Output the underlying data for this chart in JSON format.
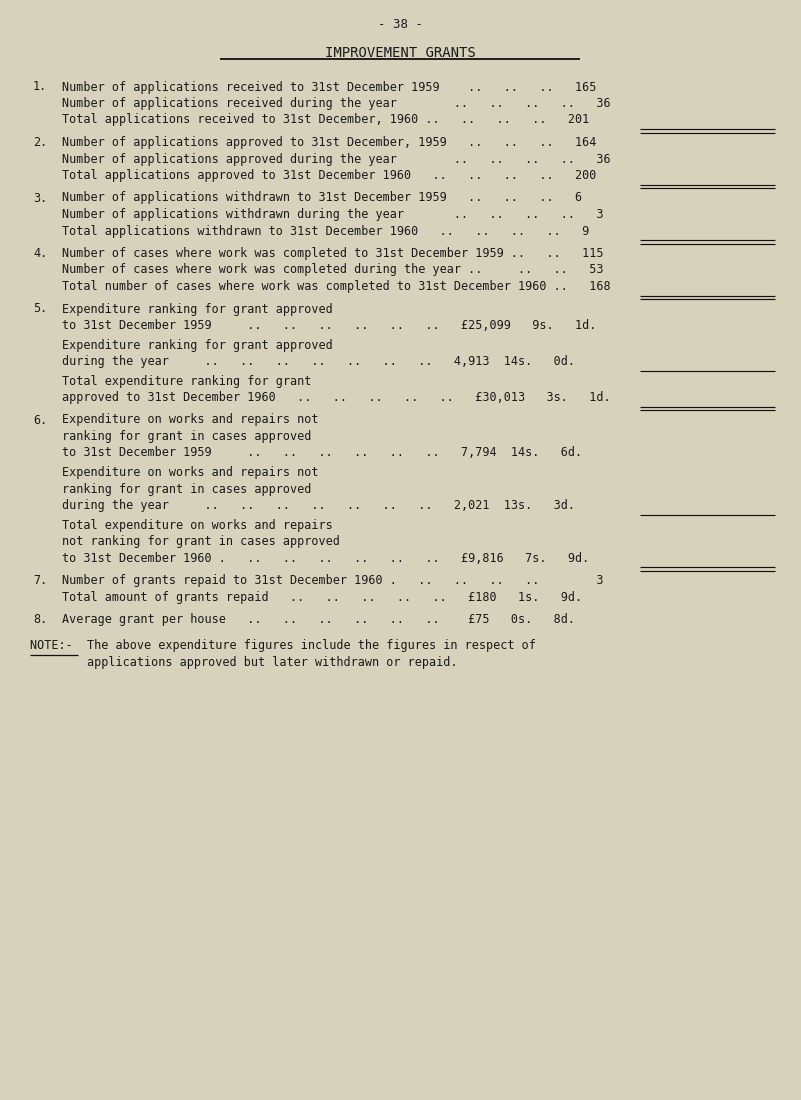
{
  "page_number": "- 38 -",
  "title": "IMPROVEMENT GRANTS",
  "bg_color": "#d6d2bc",
  "text_color": "#1a1a1a",
  "lines": [
    {
      "type": "page_num",
      "text": "- 38 -"
    },
    {
      "type": "title",
      "text": "IMPROVEMENT GRANTS"
    },
    {
      "type": "gap_large"
    },
    {
      "type": "section_line",
      "num": "1.",
      "text": "Number of applications received to 31st December 1959    ..   ..   ..   165",
      "uline": false,
      "duline": false
    },
    {
      "type": "section_line",
      "num": "",
      "text": "Number of applications received during the year        ..   ..   ..   ..   36",
      "uline": false,
      "duline": false
    },
    {
      "type": "section_line",
      "num": "",
      "text": "Total applications received to 31st December, 1960 ..   ..   ..   ..   201",
      "uline": true,
      "duline": true
    },
    {
      "type": "gap_medium"
    },
    {
      "type": "section_line",
      "num": "2.",
      "text": "Number of applications approved to 31st December, 1959   ..   ..   ..   164",
      "uline": false,
      "duline": false
    },
    {
      "type": "section_line",
      "num": "",
      "text": "Number of applications approved during the year        ..   ..   ..   ..   36",
      "uline": false,
      "duline": false
    },
    {
      "type": "section_line",
      "num": "",
      "text": "Total applications approved to 31st December 1960   ..   ..   ..   ..   200",
      "uline": true,
      "duline": true
    },
    {
      "type": "gap_medium"
    },
    {
      "type": "section_line",
      "num": "3.",
      "text": "Number of applications withdrawn to 31st December 1959   ..   ..   ..   6",
      "uline": false,
      "duline": false
    },
    {
      "type": "section_line",
      "num": "",
      "text": "Number of applications withdrawn during the year       ..   ..   ..   ..   3",
      "uline": false,
      "duline": false
    },
    {
      "type": "section_line",
      "num": "",
      "text": "Total applications withdrawn to 31st December 1960   ..   ..   ..   ..   9",
      "uline": true,
      "duline": true
    },
    {
      "type": "gap_medium"
    },
    {
      "type": "section_line",
      "num": "4.",
      "text": "Number of cases where work was completed to 31st December 1959 ..   ..   115",
      "uline": false,
      "duline": false
    },
    {
      "type": "section_line",
      "num": "",
      "text": "Number of cases where work was completed during the year ..     ..   ..   53",
      "uline": false,
      "duline": false
    },
    {
      "type": "section_line",
      "num": "",
      "text": "Total number of cases where work was completed to 31st December 1960 ..   168",
      "uline": true,
      "duline": true
    },
    {
      "type": "gap_medium"
    },
    {
      "type": "section_line",
      "num": "5.",
      "text": "Expenditure ranking for grant approved",
      "uline": false,
      "duline": false
    },
    {
      "type": "section_line",
      "num": "",
      "text": "to 31st December 1959     ..   ..   ..   ..   ..   ..   £25,099   9s.   1d.",
      "uline": false,
      "duline": false
    },
    {
      "type": "gap_small"
    },
    {
      "type": "section_line",
      "num": "",
      "text": "Expenditure ranking for grant approved",
      "uline": false,
      "duline": false
    },
    {
      "type": "section_line",
      "num": "",
      "text": "during the year     ..   ..   ..   ..   ..   ..   ..   4,913  14s.   0d.",
      "uline": true,
      "duline": false
    },
    {
      "type": "gap_small"
    },
    {
      "type": "section_line",
      "num": "",
      "text": "Total expenditure ranking for grant",
      "uline": false,
      "duline": false
    },
    {
      "type": "section_line",
      "num": "",
      "text": "approved to 31st December 1960   ..   ..   ..   ..   ..   £30,013   3s.   1d.",
      "uline": true,
      "duline": true
    },
    {
      "type": "gap_medium"
    },
    {
      "type": "section_line",
      "num": "6.",
      "text": "Expenditure on works and repairs not",
      "uline": false,
      "duline": false
    },
    {
      "type": "section_line",
      "num": "",
      "text": "ranking for grant in cases approved",
      "uline": false,
      "duline": false
    },
    {
      "type": "section_line",
      "num": "",
      "text": "to 31st December 1959     ..   ..   ..   ..   ..   ..   7,794  14s.   6d.",
      "uline": false,
      "duline": false
    },
    {
      "type": "gap_small"
    },
    {
      "type": "section_line",
      "num": "",
      "text": "Expenditure on works and repairs not",
      "uline": false,
      "duline": false
    },
    {
      "type": "section_line",
      "num": "",
      "text": "ranking for grant in cases approved",
      "uline": false,
      "duline": false
    },
    {
      "type": "section_line",
      "num": "",
      "text": "during the year     ..   ..   ..   ..   ..   ..   ..   2,021  13s.   3d.",
      "uline": true,
      "duline": false
    },
    {
      "type": "gap_small"
    },
    {
      "type": "section_line",
      "num": "",
      "text": "Total expenditure on works and repairs",
      "uline": false,
      "duline": false
    },
    {
      "type": "section_line",
      "num": "",
      "text": "not ranking for grant in cases approved",
      "uline": false,
      "duline": false
    },
    {
      "type": "section_line",
      "num": "",
      "text": "to 31st December 1960 .   ..   ..   ..   ..   ..   ..   £9,816   7s.   9d.",
      "uline": true,
      "duline": true
    },
    {
      "type": "gap_medium"
    },
    {
      "type": "section_line",
      "num": "7.",
      "text": "Number of grants repaid to 31st December 1960 .   ..   ..   ..   ..        3",
      "uline": false,
      "duline": false
    },
    {
      "type": "section_line",
      "num": "",
      "text": "Total amount of grants repaid   ..   ..   ..   ..   ..   £180   1s.   9d.",
      "uline": false,
      "duline": false
    },
    {
      "type": "gap_medium"
    },
    {
      "type": "section_line",
      "num": "8.",
      "text": "Average grant per house   ..   ..   ..   ..   ..   ..    £75   0s.   8d.",
      "uline": false,
      "duline": false
    },
    {
      "type": "gap_large"
    },
    {
      "type": "note_line",
      "text": "NOTE:-  The above expenditure figures include the figures in respect of"
    },
    {
      "type": "note_line2",
      "text": "        applications approved but later withdrawn or repaid."
    }
  ]
}
